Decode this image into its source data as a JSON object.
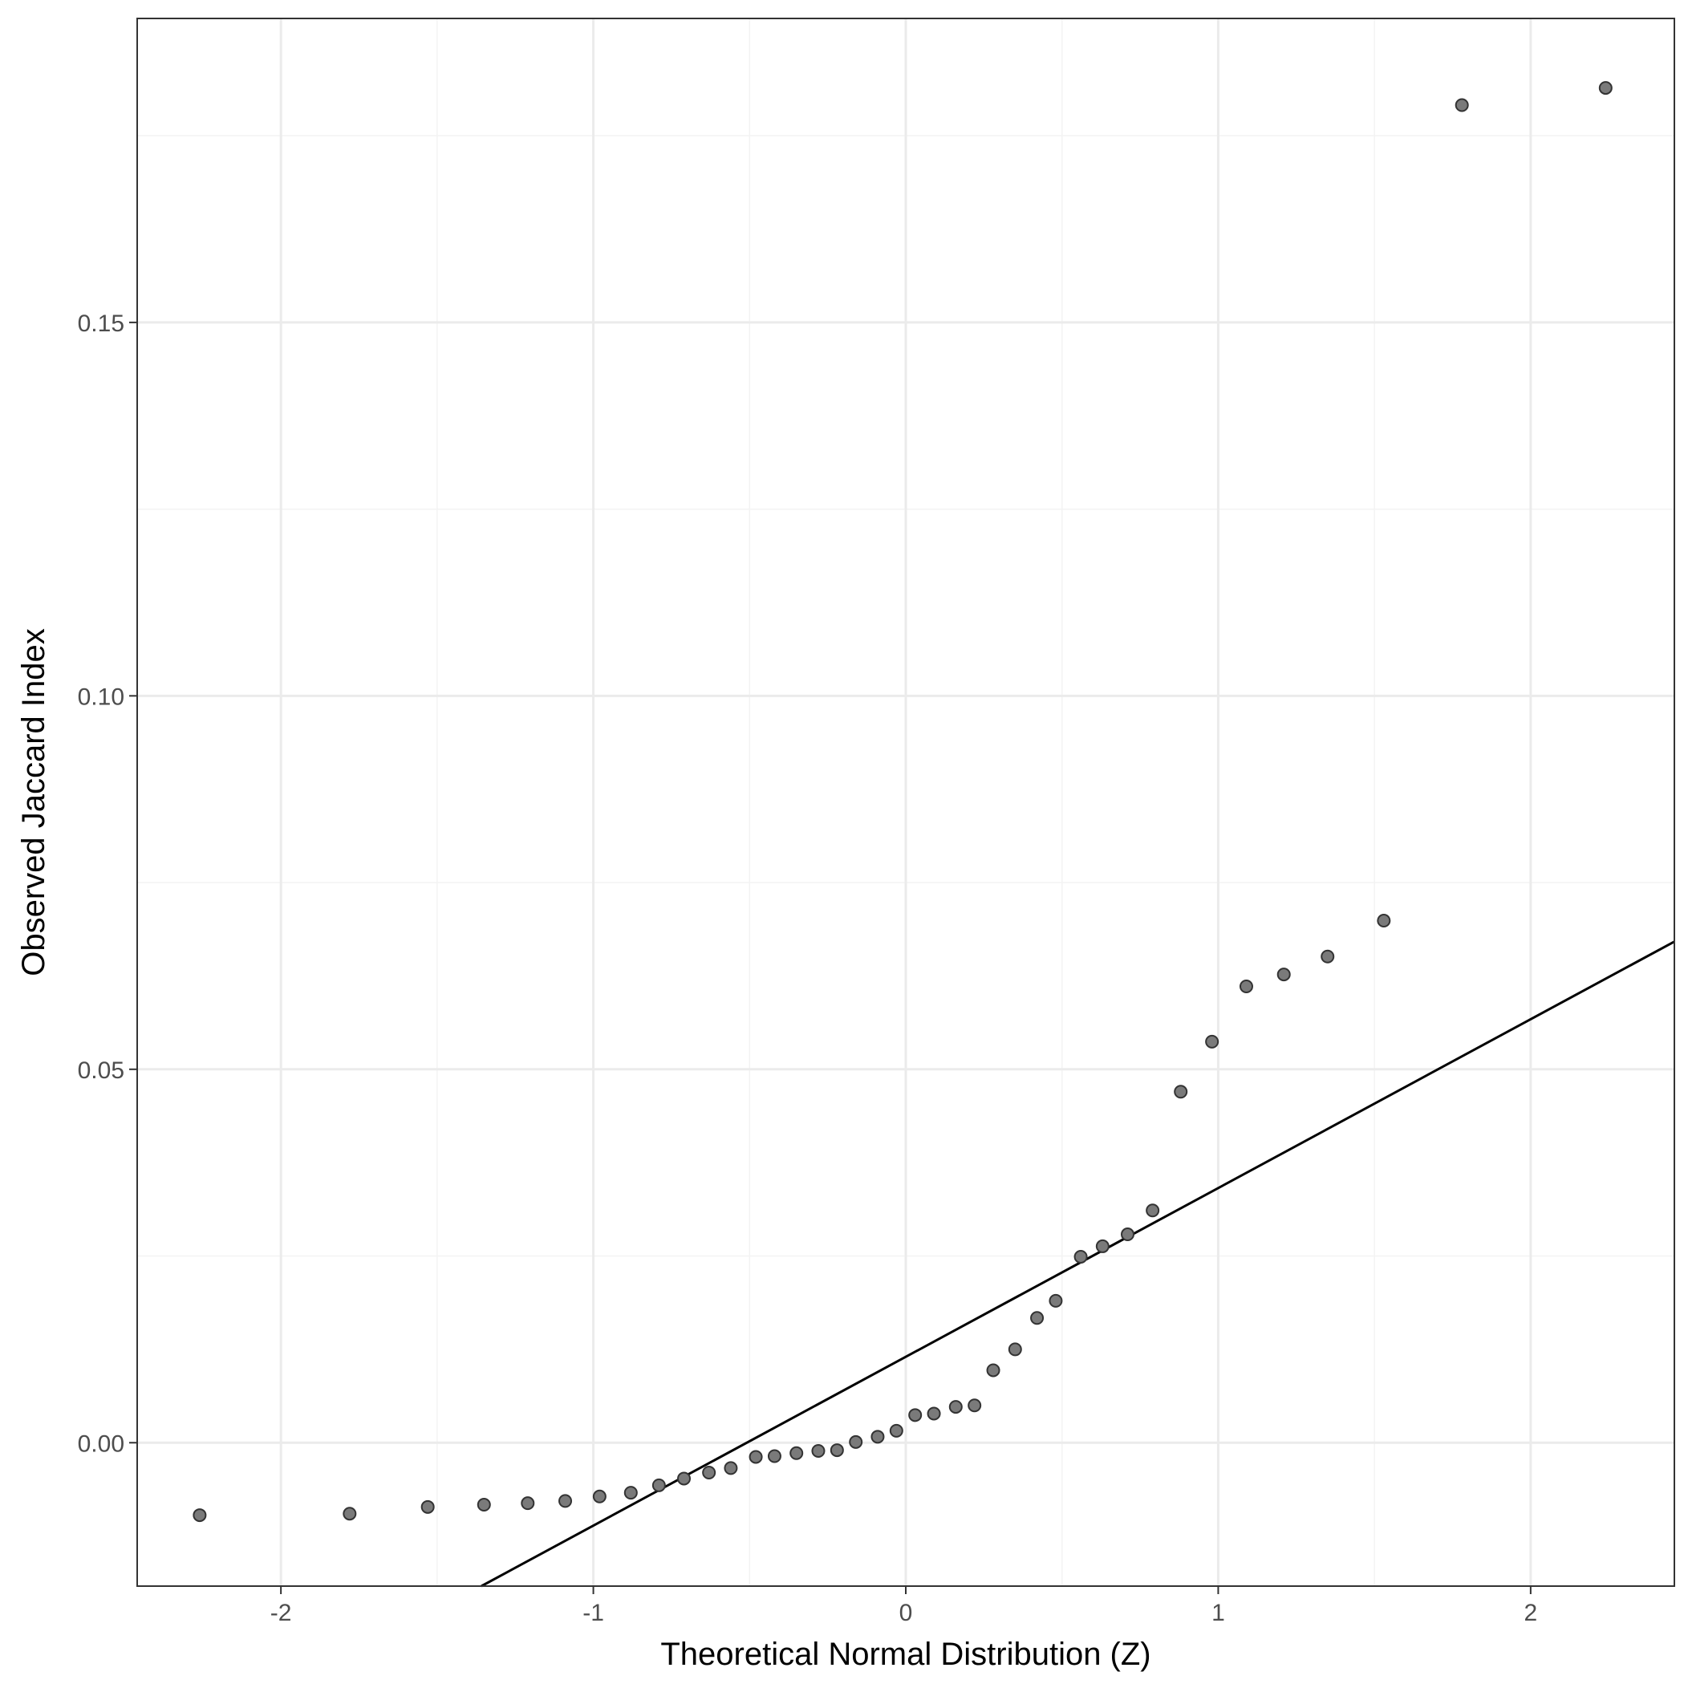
{
  "chart_data": {
    "type": "scatter",
    "title": "",
    "xlabel": "Theoretical Normal Distribution (Z)",
    "ylabel": "Observed Jaccard Index",
    "xlim": [
      -2.46,
      2.46
    ],
    "ylim": [
      -0.0192,
      0.1907
    ],
    "x_ticks": [
      -2,
      -1,
      0,
      1,
      2
    ],
    "x_tick_labels": [
      "-2",
      "-1",
      "0",
      "1",
      "2"
    ],
    "y_ticks": [
      0.0,
      0.05,
      0.1,
      0.15
    ],
    "y_tick_labels": [
      "0.00",
      "0.05",
      "0.10",
      "0.15"
    ],
    "grid": true,
    "legend": "none",
    "colors": {
      "point_fill": "#7a7a7a",
      "point_stroke": "#333333",
      "line": "#000000",
      "grid_major": "#ebebeb",
      "grid_minor": "#f3f3f3",
      "panel_border": "#333333"
    },
    "reference_line": {
      "intercept": 0.0115,
      "slope": 0.0226
    },
    "points": [
      {
        "x": -2.26,
        "y": -0.0097
      },
      {
        "x": -1.78,
        "y": -0.0095
      },
      {
        "x": -1.53,
        "y": -0.0086
      },
      {
        "x": -1.35,
        "y": -0.0083
      },
      {
        "x": -1.21,
        "y": -0.0081
      },
      {
        "x": -1.09,
        "y": -0.0078
      },
      {
        "x": -0.98,
        "y": -0.0072
      },
      {
        "x": -0.88,
        "y": -0.0067
      },
      {
        "x": -0.79,
        "y": -0.0057
      },
      {
        "x": -0.71,
        "y": -0.0048
      },
      {
        "x": -0.63,
        "y": -0.004
      },
      {
        "x": -0.56,
        "y": -0.0034
      },
      {
        "x": -0.48,
        "y": -0.0019
      },
      {
        "x": -0.42,
        "y": -0.0018
      },
      {
        "x": -0.35,
        "y": -0.0014
      },
      {
        "x": -0.28,
        "y": -0.0011
      },
      {
        "x": -0.22,
        "y": -0.001
      },
      {
        "x": -0.16,
        "y": 0.0001
      },
      {
        "x": -0.09,
        "y": 0.0008
      },
      {
        "x": -0.03,
        "y": 0.0016
      },
      {
        "x": 0.03,
        "y": 0.0037
      },
      {
        "x": 0.09,
        "y": 0.0039
      },
      {
        "x": 0.16,
        "y": 0.0048
      },
      {
        "x": 0.22,
        "y": 0.005
      },
      {
        "x": 0.28,
        "y": 0.0097
      },
      {
        "x": 0.35,
        "y": 0.0125
      },
      {
        "x": 0.42,
        "y": 0.0167
      },
      {
        "x": 0.48,
        "y": 0.019
      },
      {
        "x": 0.56,
        "y": 0.0249
      },
      {
        "x": 0.63,
        "y": 0.0263
      },
      {
        "x": 0.71,
        "y": 0.0279
      },
      {
        "x": 0.79,
        "y": 0.0311
      },
      {
        "x": 0.88,
        "y": 0.047
      },
      {
        "x": 0.98,
        "y": 0.0537
      },
      {
        "x": 1.09,
        "y": 0.0611
      },
      {
        "x": 1.21,
        "y": 0.0627
      },
      {
        "x": 1.35,
        "y": 0.0651
      },
      {
        "x": 1.53,
        "y": 0.0699
      },
      {
        "x": 1.78,
        "y": 0.1791
      },
      {
        "x": 2.24,
        "y": 0.1814
      }
    ]
  }
}
